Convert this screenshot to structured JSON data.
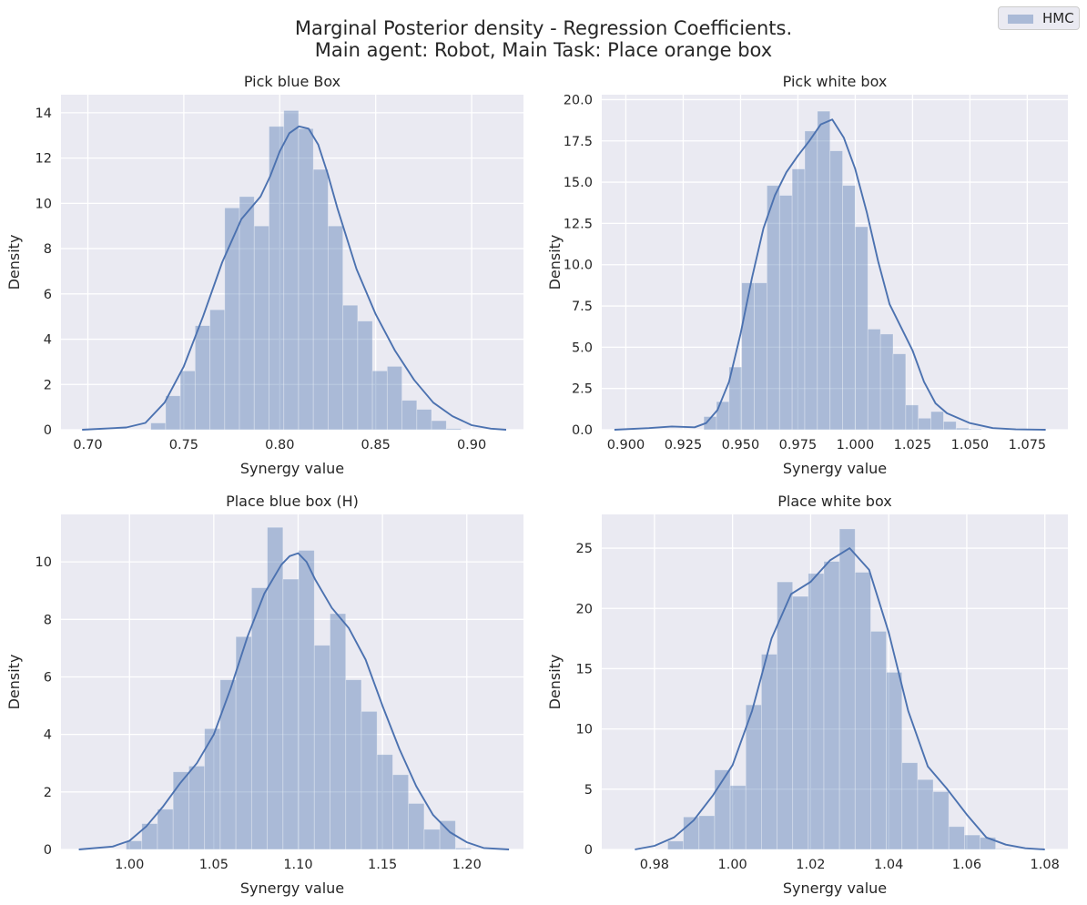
{
  "figure": {
    "title_line1": "Marginal Posterior density - Regression Coefficients.",
    "title_line2": "Main agent: Robot, Main Task: Place orange box"
  },
  "legend": {
    "label": "HMC"
  },
  "colors": {
    "bars": "#4c72b0",
    "kde": "#4c72b0",
    "panel_bg": "#eaeaf2",
    "grid": "#ffffff"
  },
  "chart_data": [
    {
      "type": "bar",
      "title": "Pick blue Box",
      "xlabel": "Synergy value",
      "ylabel": "Density",
      "xlim": [
        0.686,
        0.927
      ],
      "ylim": [
        0,
        14.8
      ],
      "xticks": [
        0.7,
        0.75,
        0.8,
        0.85,
        0.9
      ],
      "xtick_labels": [
        "0.70",
        "0.75",
        "0.80",
        "0.85",
        "0.90"
      ],
      "yticks": [
        0,
        2,
        4,
        6,
        8,
        10,
        12,
        14
      ],
      "ytick_labels": [
        "0",
        "2",
        "4",
        "6",
        "8",
        "10",
        "12",
        "14"
      ],
      "bin_edges": [
        0.7328,
        0.7405,
        0.7482,
        0.7559,
        0.7636,
        0.7713,
        0.779,
        0.7867,
        0.7944,
        0.8021,
        0.8098,
        0.8175,
        0.8252,
        0.8329,
        0.8406,
        0.8483,
        0.856,
        0.8637,
        0.8714,
        0.8791,
        0.8868,
        0.8945
      ],
      "values": [
        0.3,
        1.5,
        2.6,
        4.6,
        5.3,
        9.8,
        10.3,
        9.0,
        13.4,
        14.1,
        13.3,
        11.5,
        9.0,
        5.5,
        4.8,
        2.6,
        2.8,
        1.3,
        0.9,
        0.4,
        0.05
      ],
      "kde": {
        "x": [
          0.697,
          0.72,
          0.73,
          0.74,
          0.75,
          0.76,
          0.77,
          0.78,
          0.79,
          0.795,
          0.8,
          0.805,
          0.81,
          0.815,
          0.82,
          0.825,
          0.83,
          0.84,
          0.85,
          0.86,
          0.87,
          0.88,
          0.89,
          0.9,
          0.91,
          0.918
        ],
        "y": [
          0,
          0.1,
          0.3,
          1.2,
          2.8,
          5.0,
          7.4,
          9.3,
          10.3,
          11.2,
          12.3,
          13.1,
          13.4,
          13.3,
          12.6,
          11.3,
          9.8,
          7.1,
          5.1,
          3.5,
          2.2,
          1.2,
          0.6,
          0.2,
          0.05,
          0
        ]
      }
    },
    {
      "type": "bar",
      "title": "Pick white box",
      "xlabel": "Synergy value",
      "ylabel": "Density",
      "xlim": [
        0.8895,
        1.0927
      ],
      "ylim": [
        0,
        20.3
      ],
      "xticks": [
        0.9,
        0.925,
        0.95,
        0.975,
        1.0,
        1.025,
        1.05,
        1.075
      ],
      "xtick_labels": [
        "0.900",
        "0.925",
        "0.950",
        "0.975",
        "1.000",
        "1.025",
        "1.050",
        "1.075"
      ],
      "yticks": [
        0.0,
        2.5,
        5.0,
        7.5,
        10.0,
        12.5,
        15.0,
        17.5,
        20.0
      ],
      "ytick_labels": [
        "0.0",
        "2.5",
        "5.0",
        "7.5",
        "10.0",
        "12.5",
        "15.0",
        "17.5",
        "20.0"
      ],
      "bin_edges": [
        0.934,
        0.9395,
        0.945,
        0.9505,
        0.956,
        0.9615,
        0.967,
        0.9725,
        0.978,
        0.9835,
        0.989,
        0.9945,
        1.0,
        1.0055,
        1.011,
        1.0165,
        1.022,
        1.0275,
        1.033,
        1.0385,
        1.044,
        1.0495,
        1.055
      ],
      "values": [
        0.8,
        1.7,
        3.8,
        8.9,
        8.9,
        14.8,
        14.2,
        15.8,
        18.1,
        19.3,
        16.9,
        14.8,
        12.3,
        6.1,
        5.8,
        4.6,
        1.5,
        0.7,
        1.1,
        0.5,
        0.1,
        0.05
      ],
      "kde": {
        "x": [
          0.895,
          0.91,
          0.92,
          0.93,
          0.935,
          0.94,
          0.945,
          0.95,
          0.955,
          0.96,
          0.965,
          0.97,
          0.975,
          0.98,
          0.985,
          0.99,
          0.995,
          1.0,
          1.005,
          1.01,
          1.015,
          1.02,
          1.025,
          1.03,
          1.035,
          1.04,
          1.05,
          1.06,
          1.07,
          1.083
        ],
        "y": [
          0,
          0.1,
          0.2,
          0.15,
          0.4,
          1.2,
          2.9,
          5.8,
          9.2,
          12.2,
          14.2,
          15.6,
          16.6,
          17.5,
          18.5,
          18.8,
          17.7,
          15.8,
          13.2,
          10.2,
          7.6,
          6.2,
          4.8,
          2.9,
          1.6,
          1.0,
          0.4,
          0.1,
          0.02,
          0
        ]
      }
    },
    {
      "type": "bar",
      "title": "Place blue box (H)",
      "xlabel": "Synergy value",
      "ylabel": "Density",
      "xlim": [
        0.9594,
        1.2336
      ],
      "ylim": [
        0,
        11.65
      ],
      "xticks": [
        1.0,
        1.05,
        1.1,
        1.15,
        1.2
      ],
      "xtick_labels": [
        "1.00",
        "1.05",
        "1.10",
        "1.15",
        "1.20"
      ],
      "yticks": [
        0,
        2,
        4,
        6,
        8,
        10
      ],
      "ytick_labels": [
        "0",
        "2",
        "4",
        "6",
        "8",
        "10"
      ],
      "bin_edges": [
        0.998,
        1.0073,
        1.0166,
        1.0259,
        1.0352,
        1.0445,
        1.0538,
        1.0631,
        1.0724,
        1.0817,
        1.091,
        1.1003,
        1.1096,
        1.1189,
        1.1282,
        1.1375,
        1.1468,
        1.1561,
        1.1654,
        1.1747,
        1.184,
        1.1933,
        1.2026
      ],
      "values": [
        0.3,
        0.9,
        1.4,
        2.7,
        2.9,
        4.2,
        5.9,
        7.4,
        9.1,
        11.2,
        9.4,
        10.4,
        7.1,
        8.2,
        5.9,
        4.8,
        3.3,
        2.6,
        1.6,
        0.7,
        1.0,
        0.05
      ],
      "kde": {
        "x": [
          0.97,
          0.99,
          1.0,
          1.01,
          1.02,
          1.03,
          1.04,
          1.05,
          1.06,
          1.07,
          1.08,
          1.09,
          1.095,
          1.1,
          1.105,
          1.11,
          1.12,
          1.13,
          1.14,
          1.15,
          1.16,
          1.17,
          1.18,
          1.19,
          1.2,
          1.21,
          1.225
        ],
        "y": [
          0,
          0.1,
          0.3,
          0.8,
          1.5,
          2.3,
          3.0,
          4.0,
          5.6,
          7.4,
          8.9,
          9.9,
          10.2,
          10.3,
          10.0,
          9.4,
          8.4,
          7.7,
          6.6,
          5.0,
          3.5,
          2.2,
          1.2,
          0.6,
          0.25,
          0.05,
          0
        ]
      }
    },
    {
      "type": "bar",
      "title": "Place white box",
      "xlabel": "Synergy value",
      "ylabel": "Density",
      "xlim": [
        0.9665,
        1.0859
      ],
      "ylim": [
        0,
        27.8
      ],
      "xticks": [
        0.98,
        1.0,
        1.02,
        1.04,
        1.06,
        1.08
      ],
      "xtick_labels": [
        "0.98",
        "1.00",
        "1.02",
        "1.04",
        "1.06",
        "1.08"
      ],
      "yticks": [
        0,
        5,
        10,
        15,
        20,
        25
      ],
      "ytick_labels": [
        "0",
        "5",
        "10",
        "15",
        "20",
        "25"
      ],
      "bin_edges": [
        0.9834,
        0.9874,
        0.9914,
        0.9954,
        0.9994,
        1.0034,
        1.0074,
        1.0114,
        1.0154,
        1.0194,
        1.0234,
        1.0274,
        1.0314,
        1.0354,
        1.0394,
        1.0434,
        1.0474,
        1.0514,
        1.0554,
        1.0594,
        1.0634,
        1.0674,
        1.0714
      ],
      "values": [
        0.7,
        2.7,
        2.8,
        6.6,
        5.3,
        12.0,
        16.2,
        22.2,
        21.0,
        22.9,
        23.9,
        26.6,
        23.0,
        18.1,
        14.7,
        7.2,
        5.8,
        4.8,
        1.9,
        1.2,
        1.0,
        0.05
      ],
      "kde": {
        "x": [
          0.975,
          0.98,
          0.985,
          0.99,
          0.995,
          1.0,
          1.005,
          1.01,
          1.015,
          1.02,
          1.025,
          1.03,
          1.035,
          1.04,
          1.045,
          1.05,
          1.055,
          1.06,
          1.065,
          1.07,
          1.075,
          1.08
        ],
        "y": [
          0,
          0.3,
          1.0,
          2.4,
          4.5,
          7.0,
          11.5,
          17.5,
          21.2,
          22.2,
          24.0,
          25.0,
          23.2,
          18.0,
          11.5,
          6.9,
          5.0,
          2.9,
          1.0,
          0.4,
          0.1,
          0
        ]
      }
    }
  ]
}
